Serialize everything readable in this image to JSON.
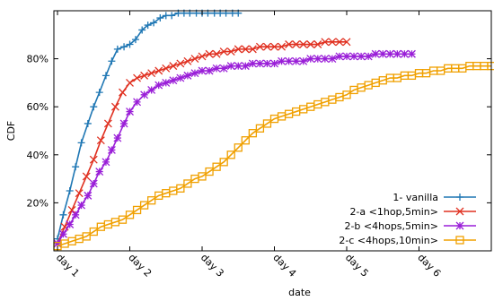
{
  "chart_data": {
    "type": "line",
    "title": "",
    "xlabel": "date",
    "ylabel": "CDF",
    "xlim": [
      0.95,
      7.0
    ],
    "ylim": [
      0,
      100
    ],
    "x_ticks": [
      {
        "value": 1,
        "label": "day 1"
      },
      {
        "value": 2,
        "label": "day 2"
      },
      {
        "value": 3,
        "label": "day 3"
      },
      {
        "value": 4,
        "label": "day 4"
      },
      {
        "value": 5,
        "label": "day 5"
      },
      {
        "value": 6,
        "label": "day 6"
      }
    ],
    "y_ticks": [
      {
        "value": 20,
        "label": "20%"
      },
      {
        "value": 40,
        "label": "40%"
      },
      {
        "value": 60,
        "label": "60%"
      },
      {
        "value": 80,
        "label": "80%"
      }
    ],
    "grid": false,
    "legend_position": "bottom-right",
    "series": [
      {
        "name": "1- vanilla",
        "color": "#1f77b4",
        "marker": "plus",
        "x": [
          1.0,
          1.08,
          1.17,
          1.25,
          1.33,
          1.42,
          1.5,
          1.58,
          1.67,
          1.75,
          1.83,
          1.92,
          2.0,
          2.08,
          2.17,
          2.25,
          2.33,
          2.42,
          2.5,
          2.58,
          2.67,
          2.75,
          2.83,
          2.92,
          3.0,
          3.08,
          3.17,
          3.25,
          3.33,
          3.42,
          3.5
        ],
        "y": [
          5,
          15,
          25,
          35,
          45,
          53,
          60,
          66,
          73,
          79,
          84,
          85,
          86,
          88,
          92,
          94,
          95,
          97,
          98,
          98,
          99,
          99,
          99,
          99,
          99,
          99,
          99,
          99,
          99,
          99,
          99
        ]
      },
      {
        "name": "2-a <1hop,5min>",
        "color": "#e03020",
        "marker": "x",
        "x": [
          1.0,
          1.1,
          1.2,
          1.3,
          1.4,
          1.5,
          1.6,
          1.7,
          1.8,
          1.9,
          2.0,
          2.1,
          2.2,
          2.3,
          2.4,
          2.5,
          2.6,
          2.7,
          2.8,
          2.9,
          3.0,
          3.1,
          3.2,
          3.3,
          3.4,
          3.5,
          3.6,
          3.7,
          3.8,
          3.9,
          4.0,
          4.1,
          4.2,
          4.3,
          4.4,
          4.5,
          4.6,
          4.7,
          4.8,
          4.9,
          5.0
        ],
        "y": [
          3,
          10,
          17,
          24,
          31,
          38,
          46,
          53,
          60,
          66,
          70,
          72,
          73,
          74,
          75,
          76,
          77,
          78,
          79,
          80,
          81,
          82,
          82,
          83,
          83,
          84,
          84,
          84,
          85,
          85,
          85,
          85,
          86,
          86,
          86,
          86,
          86,
          87,
          87,
          87,
          87
        ]
      },
      {
        "name": "2-b <4hops,5min>",
        "color": "#9a1fd8",
        "marker": "star",
        "x": [
          1.0,
          1.08,
          1.17,
          1.25,
          1.33,
          1.42,
          1.5,
          1.58,
          1.67,
          1.75,
          1.83,
          1.92,
          2.0,
          2.1,
          2.2,
          2.3,
          2.4,
          2.5,
          2.6,
          2.7,
          2.8,
          2.9,
          3.0,
          3.1,
          3.2,
          3.3,
          3.4,
          3.5,
          3.6,
          3.7,
          3.8,
          3.9,
          4.0,
          4.1,
          4.2,
          4.3,
          4.4,
          4.5,
          4.6,
          4.7,
          4.8,
          4.9,
          5.0,
          5.1,
          5.2,
          5.3,
          5.4,
          5.5,
          5.6,
          5.7,
          5.8,
          5.9
        ],
        "y": [
          3,
          7,
          11,
          15,
          19,
          23,
          28,
          33,
          37,
          42,
          47,
          53,
          58,
          62,
          65,
          67,
          69,
          70,
          71,
          72,
          73,
          74,
          75,
          75,
          76,
          76,
          77,
          77,
          77,
          78,
          78,
          78,
          78,
          79,
          79,
          79,
          79,
          80,
          80,
          80,
          80,
          81,
          81,
          81,
          81,
          81,
          82,
          82,
          82,
          82,
          82,
          82
        ]
      },
      {
        "name": "2-c <4hops,10min>",
        "color": "#f0a000",
        "marker": "square",
        "x": [
          1.0,
          1.1,
          1.2,
          1.3,
          1.4,
          1.5,
          1.6,
          1.7,
          1.8,
          1.9,
          2.0,
          2.1,
          2.2,
          2.3,
          2.4,
          2.5,
          2.6,
          2.7,
          2.8,
          2.9,
          3.0,
          3.1,
          3.2,
          3.3,
          3.4,
          3.5,
          3.6,
          3.7,
          3.8,
          3.9,
          4.0,
          4.1,
          4.2,
          4.3,
          4.4,
          4.5,
          4.6,
          4.7,
          4.8,
          4.9,
          5.0,
          5.1,
          5.2,
          5.3,
          5.4,
          5.5,
          5.6,
          5.7,
          5.8,
          5.9,
          6.0,
          6.1,
          6.2,
          6.3,
          6.4,
          6.5,
          6.6,
          6.7,
          6.8,
          6.9,
          7.0
        ],
        "y": [
          2,
          3,
          4,
          5,
          6,
          8,
          10,
          11,
          12,
          13,
          15,
          17,
          19,
          21,
          23,
          24,
          25,
          26,
          28,
          30,
          31,
          33,
          35,
          37,
          40,
          43,
          46,
          49,
          51,
          53,
          55,
          56,
          57,
          58,
          59,
          60,
          61,
          62,
          63,
          64,
          65,
          67,
          68,
          69,
          70,
          71,
          72,
          72,
          73,
          73,
          74,
          74,
          75,
          75,
          76,
          76,
          76,
          77,
          77,
          77,
          77
        ]
      }
    ]
  }
}
